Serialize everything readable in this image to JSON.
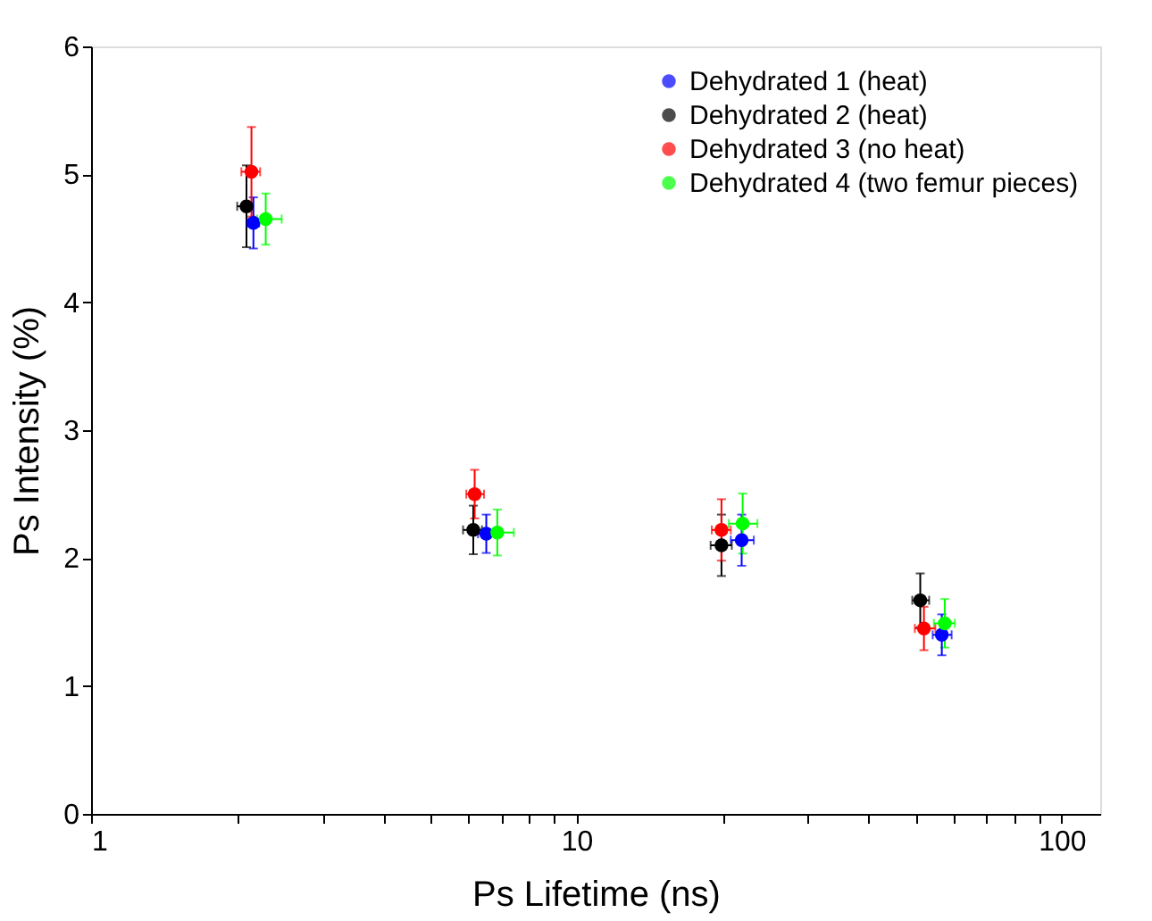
{
  "chart_data": {
    "type": "scatter",
    "xlabel": "Ps Lifetime (ns)",
    "ylabel": "Ps Intensity (%)",
    "log": "x",
    "xlim": [
      1,
      120
    ],
    "ylim": [
      0,
      6
    ],
    "xticks": [
      1,
      {
        "value": 2,
        "label": null
      },
      {
        "value": 3,
        "label": null
      },
      {
        "value": 4,
        "label": null
      },
      {
        "value": 5,
        "label": null
      },
      {
        "value": 6,
        "label": null
      },
      {
        "value": 7,
        "label": null
      },
      {
        "value": 8,
        "label": null
      },
      {
        "value": 9,
        "label": null
      },
      10,
      {
        "value": 20,
        "label": null
      },
      {
        "value": 30,
        "label": null
      },
      {
        "value": 40,
        "label": null
      },
      {
        "value": 50,
        "label": null
      },
      {
        "value": 60,
        "label": null
      },
      {
        "value": 70,
        "label": null
      },
      {
        "value": 80,
        "label": null
      },
      {
        "value": 90,
        "label": null
      },
      100
    ],
    "yticks": [
      0,
      1,
      2,
      3,
      4,
      5,
      6
    ],
    "grid": false,
    "legend": "top right",
    "marker": "circle",
    "series": [
      {
        "name": "Dehydrated 1 (heat)",
        "color": "#0000ff",
        "x": [
          2.16,
          6.52,
          21.9,
          56.6
        ],
        "values": [
          4.62,
          2.19,
          2.14,
          1.4
        ],
        "errors": [
          0.2,
          0.15,
          0.2,
          0.16
        ],
        "xerrors": [
          [
            2.1,
            2.22
          ],
          [
            6.27,
            6.79
          ],
          [
            20.8,
            23.2
          ],
          [
            54.2,
            59.3
          ]
        ]
      },
      {
        "name": "Dehydrated 2 (heat)",
        "color": "#000000",
        "x": [
          2.09,
          6.13,
          19.9,
          51.1
        ],
        "values": [
          4.75,
          2.22,
          2.1,
          1.67
        ],
        "errors": [
          0.32,
          0.19,
          0.24,
          0.21
        ],
        "xerrors": [
          [
            2.0,
            2.14
          ],
          [
            5.84,
            6.39
          ],
          [
            18.9,
            20.9
          ],
          [
            49.2,
            53.3
          ]
        ]
      },
      {
        "name": "Dehydrated 3 (no heat)",
        "color": "#ff0000",
        "x": [
          2.14,
          6.17,
          19.9,
          52.0
        ],
        "values": [
          5.02,
          2.5,
          2.22,
          1.45
        ],
        "errors": [
          0.35,
          0.19,
          0.24,
          0.17
        ],
        "xerrors": [
          [
            2.04,
            2.23
          ],
          [
            5.93,
            6.45
          ],
          [
            19.0,
            20.8
          ],
          [
            49.8,
            54.9
          ]
        ]
      },
      {
        "name": "Dehydrated 4 (two femur pieces)",
        "color": "#00ff00",
        "x": [
          2.29,
          6.87,
          22.0,
          57.4
        ],
        "values": [
          4.65,
          2.2,
          2.27,
          1.49
        ],
        "errors": [
          0.2,
          0.18,
          0.235,
          0.19
        ],
        "xerrors": [
          [
            2.2,
            2.47
          ],
          [
            6.37,
            7.43
          ],
          [
            20.6,
            23.6
          ],
          [
            54.5,
            60.2
          ]
        ]
      }
    ]
  }
}
